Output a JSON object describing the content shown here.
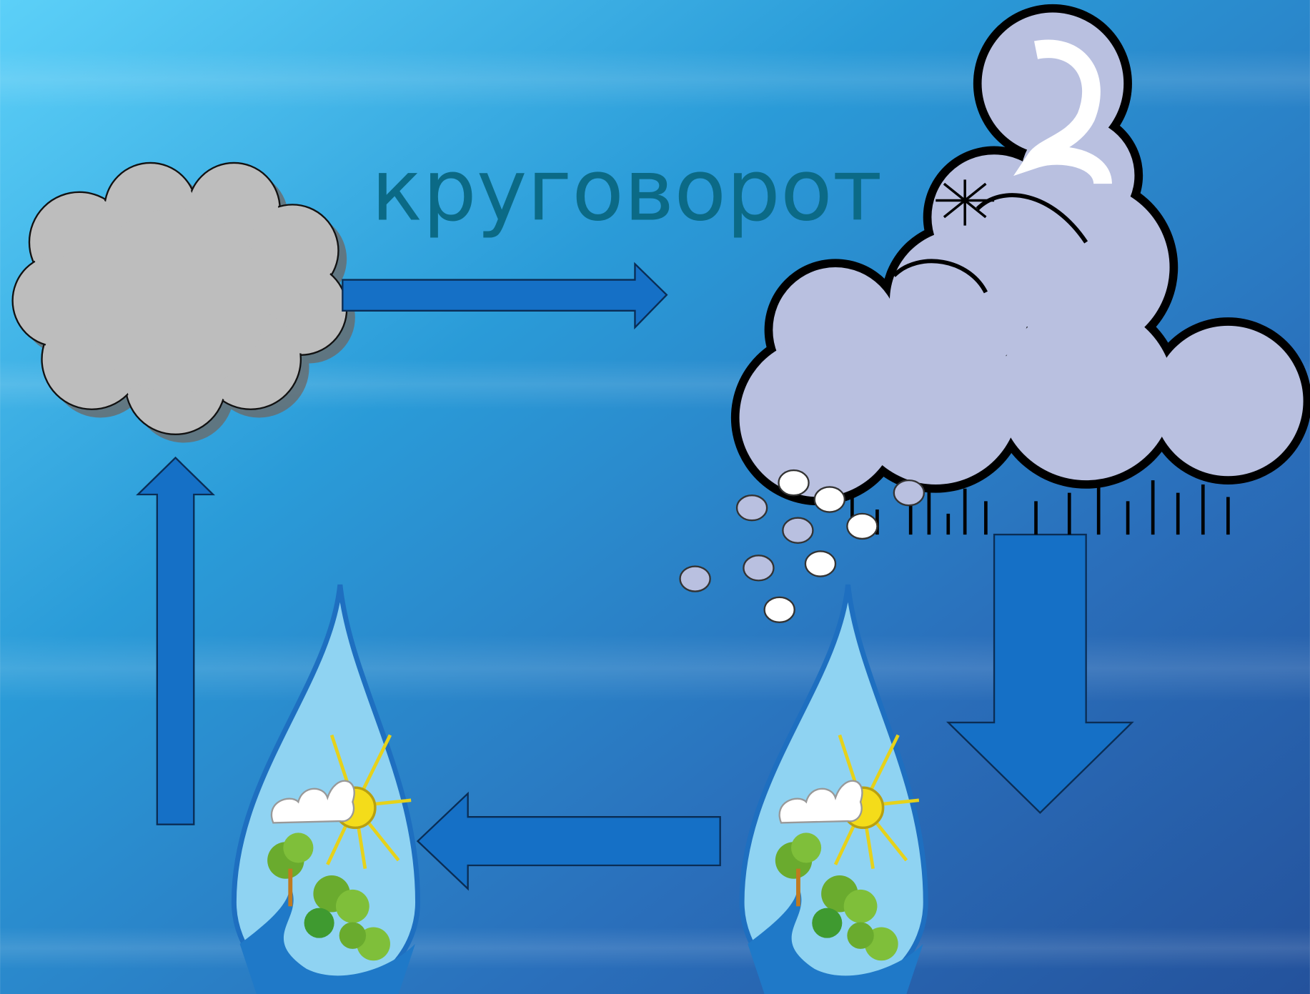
{
  "slide": {
    "title": "круговорот"
  }
}
